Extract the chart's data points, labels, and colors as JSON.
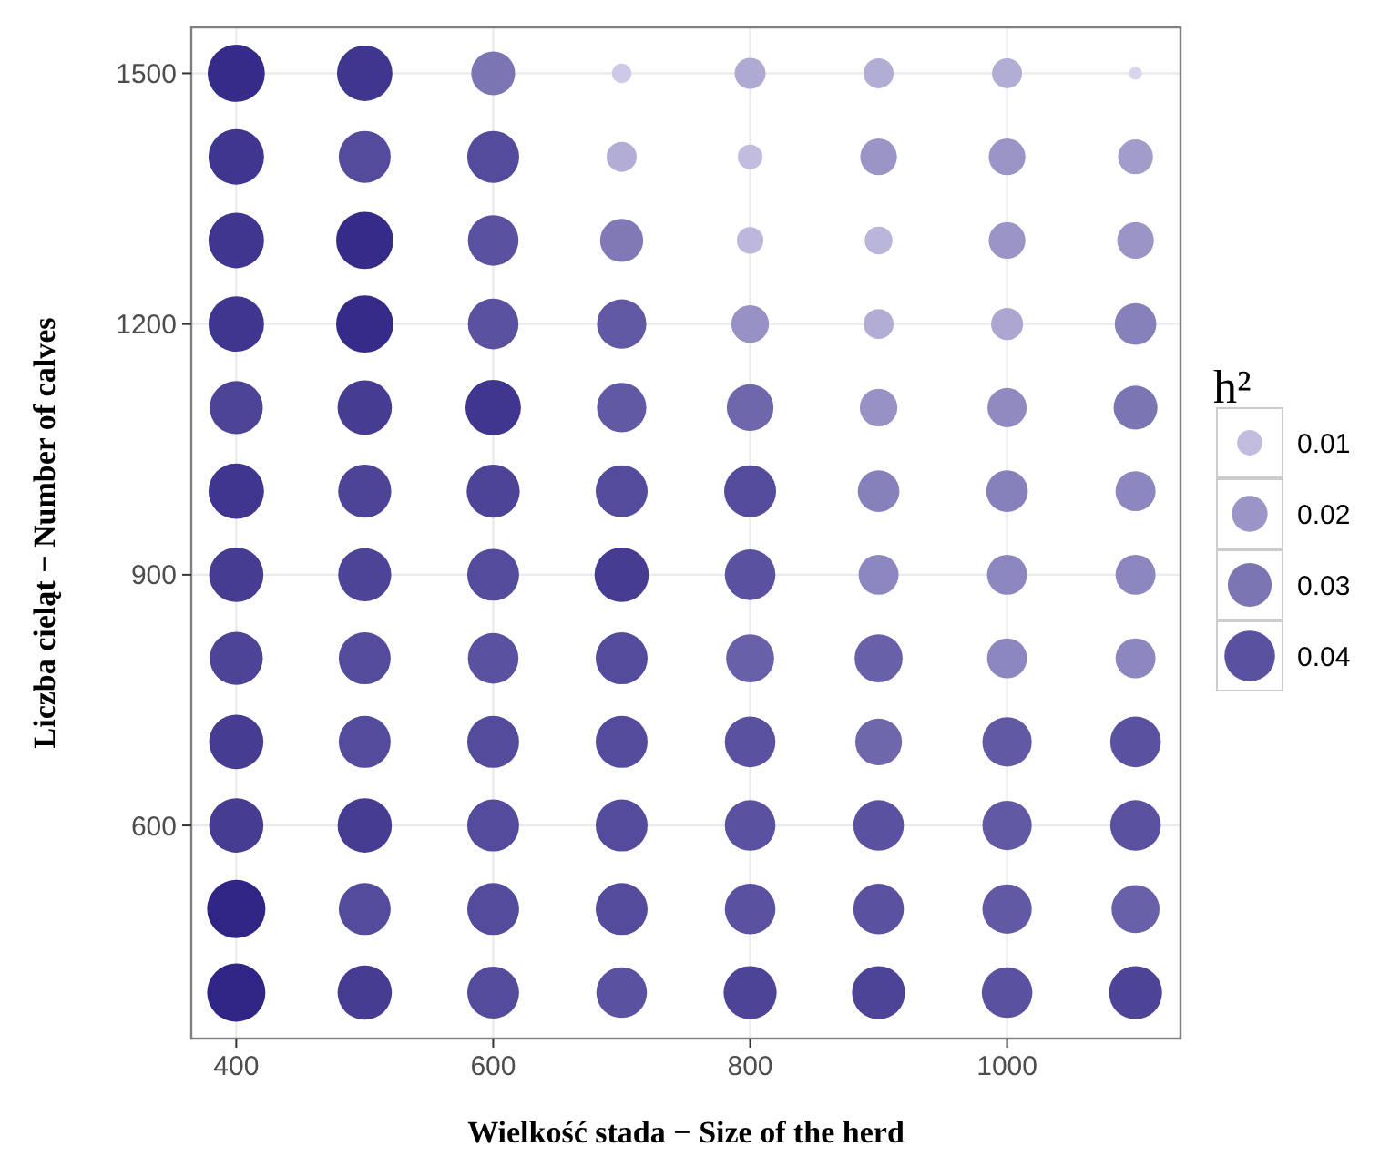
{
  "chart_data": {
    "type": "bubble",
    "xlabel": "Wielkość stada − Size of the herd",
    "ylabel": "Liczba cieląt − Number of calves",
    "legend_title": "h²",
    "grid": true,
    "xlim": [
      365,
      1135
    ],
    "ylim": [
      345,
      1555
    ],
    "xticks": [
      400,
      600,
      800,
      1000
    ],
    "yticks": [
      600,
      900,
      1200,
      1500
    ],
    "size_legend": [
      0.01,
      0.02,
      0.03,
      0.04
    ],
    "series": [
      {
        "x": [
          400,
          500,
          600,
          700,
          800,
          900,
          1000,
          1100,
          400,
          500,
          600,
          700,
          800,
          900,
          1000,
          1100,
          400,
          500,
          600,
          700,
          800,
          900,
          1000,
          1100,
          400,
          500,
          600,
          700,
          800,
          900,
          1000,
          1100,
          400,
          500,
          600,
          700,
          800,
          900,
          1000,
          1100,
          400,
          500,
          600,
          700,
          800,
          900,
          1000,
          1100,
          400,
          500,
          600,
          700,
          800,
          900,
          1000,
          1100,
          400,
          500,
          600,
          700,
          800,
          900,
          1000,
          1100,
          400,
          500,
          600,
          700,
          800,
          900,
          1000,
          1100,
          400,
          500,
          600,
          700,
          800,
          900,
          1000,
          1100,
          400,
          500,
          600,
          700,
          800,
          900,
          1000,
          1100,
          400,
          500,
          600,
          700,
          800,
          900,
          1000,
          1100
        ],
        "values": [
          1500,
          1500,
          1500,
          1500,
          1500,
          1500,
          1500,
          1500,
          1400,
          1400,
          1400,
          1400,
          1400,
          1400,
          1400,
          1400,
          1300,
          1300,
          1300,
          1300,
          1300,
          1300,
          1300,
          1300,
          1200,
          1200,
          1200,
          1200,
          1200,
          1200,
          1200,
          1200,
          1100,
          1100,
          1100,
          1100,
          1100,
          1100,
          1100,
          1100,
          1000,
          1000,
          1000,
          1000,
          1000,
          1000,
          1000,
          1000,
          900,
          900,
          900,
          900,
          900,
          900,
          900,
          900,
          800,
          800,
          800,
          800,
          800,
          800,
          800,
          800,
          700,
          700,
          700,
          700,
          700,
          700,
          700,
          700,
          600,
          600,
          600,
          600,
          600,
          600,
          600,
          600,
          500,
          500,
          500,
          500,
          500,
          500,
          500,
          500,
          400,
          400,
          400,
          400,
          400,
          400,
          400,
          400
        ],
        "sizes": [
          0.051,
          0.048,
          0.03,
          0.0059,
          0.015,
          0.014,
          0.014,
          0.0026,
          0.048,
          0.042,
          0.042,
          0.014,
          0.0095,
          0.021,
          0.021,
          0.019,
          0.048,
          0.051,
          0.04,
          0.029,
          0.011,
          0.012,
          0.021,
          0.021,
          0.048,
          0.051,
          0.04,
          0.038,
          0.022,
          0.014,
          0.016,
          0.027,
          0.044,
          0.046,
          0.048,
          0.038,
          0.034,
          0.022,
          0.024,
          0.03,
          0.048,
          0.044,
          0.044,
          0.042,
          0.042,
          0.027,
          0.027,
          0.025,
          0.046,
          0.044,
          0.042,
          0.046,
          0.04,
          0.025,
          0.025,
          0.025,
          0.044,
          0.042,
          0.04,
          0.042,
          0.036,
          0.036,
          0.025,
          0.025,
          0.046,
          0.042,
          0.042,
          0.042,
          0.04,
          0.034,
          0.038,
          0.04,
          0.046,
          0.046,
          0.042,
          0.042,
          0.04,
          0.04,
          0.038,
          0.04,
          0.053,
          0.042,
          0.042,
          0.042,
          0.04,
          0.04,
          0.038,
          0.036,
          0.053,
          0.046,
          0.042,
          0.04,
          0.044,
          0.044,
          0.04,
          0.044
        ],
        "colors": [
          "#352c89",
          "#3f368f",
          "#7c75b4",
          "#cec9e6",
          "#afaad3",
          "#b2add5",
          "#b2add5",
          "#d9d5ed",
          "#3f368f",
          "#534b9c",
          "#534b9c",
          "#b2add5",
          "#c2bdde",
          "#9b95c7",
          "#9b95c7",
          "#a29ccb",
          "#3f368f",
          "#352c89",
          "#5a52a0",
          "#8079b6",
          "#bdb8db",
          "#b9b4d9",
          "#9b95c7",
          "#9b95c7",
          "#3f368f",
          "#352c89",
          "#5a52a0",
          "#6159a4",
          "#9791c5",
          "#b2add5",
          "#aca6d1",
          "#8680bb",
          "#4d4498",
          "#463d93",
          "#3f368f",
          "#6159a4",
          "#6e67ac",
          "#9791c5",
          "#908ac1",
          "#7c75b4",
          "#3f368f",
          "#4d4498",
          "#4d4498",
          "#534b9c",
          "#534b9c",
          "#8680bb",
          "#8680bb",
          "#8d87bf",
          "#463d93",
          "#4d4498",
          "#534b9c",
          "#463d93",
          "#5a52a0",
          "#8d87bf",
          "#8d87bf",
          "#8d87bf",
          "#4d4498",
          "#534b9c",
          "#5a52a0",
          "#534b9c",
          "#6860a8",
          "#6860a8",
          "#8d87bf",
          "#8d87bf",
          "#463d93",
          "#534b9c",
          "#534b9c",
          "#534b9c",
          "#5a52a0",
          "#6e67ac",
          "#6159a4",
          "#5a52a0",
          "#463d93",
          "#463d93",
          "#534b9c",
          "#534b9c",
          "#5a52a0",
          "#5a52a0",
          "#6159a4",
          "#5a52a0",
          "#2e2585",
          "#534b9c",
          "#534b9c",
          "#534b9c",
          "#5a52a0",
          "#5a52a0",
          "#6159a4",
          "#6860a8",
          "#2e2585",
          "#463d93",
          "#534b9c",
          "#5a52a0",
          "#4d4498",
          "#4d4498",
          "#5a52a0",
          "#4d4498"
        ]
      }
    ]
  }
}
